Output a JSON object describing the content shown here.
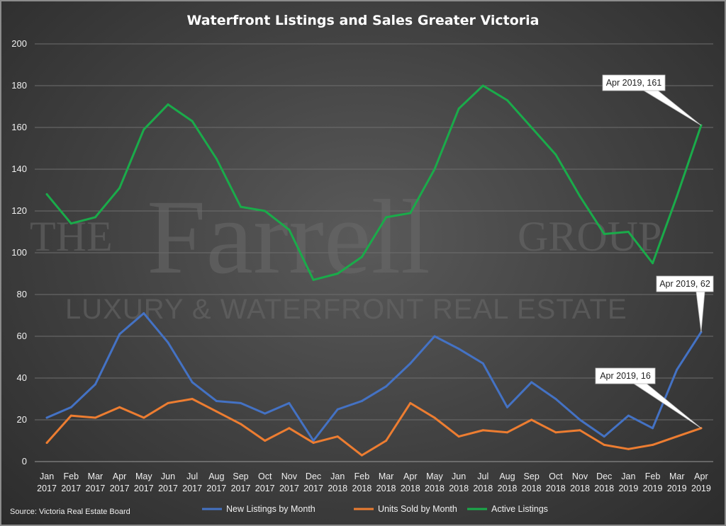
{
  "chart_data": {
    "type": "line",
    "title": "Waterfront Listings and Sales Greater Victoria",
    "categories": [
      [
        "Jan",
        "2017"
      ],
      [
        "Feb",
        "2017"
      ],
      [
        "Mar",
        "2017"
      ],
      [
        "Apr",
        "2017"
      ],
      [
        "May",
        "2017"
      ],
      [
        "Jun",
        "2017"
      ],
      [
        "Jul",
        "2017"
      ],
      [
        "Aug",
        "2017"
      ],
      [
        "Sep",
        "2017"
      ],
      [
        "Oct",
        "2017"
      ],
      [
        "Nov",
        "2017"
      ],
      [
        "Dec",
        "2017"
      ],
      [
        "Jan",
        "2018"
      ],
      [
        "Feb",
        "2018"
      ],
      [
        "Mar",
        "2018"
      ],
      [
        "Apr",
        "2018"
      ],
      [
        "May",
        "2018"
      ],
      [
        "Jun",
        "2018"
      ],
      [
        "Jul",
        "2018"
      ],
      [
        "Aug",
        "2018"
      ],
      [
        "Sep",
        "2018"
      ],
      [
        "Oct",
        "2018"
      ],
      [
        "Nov",
        "2018"
      ],
      [
        "Dec",
        "2018"
      ],
      [
        "Jan",
        "2019"
      ],
      [
        "Feb",
        "2019"
      ],
      [
        "Mar",
        "2019"
      ],
      [
        "Apr",
        "2019"
      ]
    ],
    "ylim": [
      0,
      200
    ],
    "yticks": [
      0,
      20,
      40,
      60,
      80,
      100,
      120,
      140,
      160,
      180,
      200
    ],
    "grid": true,
    "legend_position": "bottom",
    "series": [
      {
        "name": "New Listings by Month",
        "color": "#4472c4",
        "values": [
          21,
          26,
          37,
          61,
          71,
          57,
          38,
          29,
          28,
          23,
          28,
          10,
          25,
          29,
          36,
          47,
          60,
          54,
          47,
          26,
          38,
          30,
          20,
          12,
          22,
          16,
          44,
          62
        ]
      },
      {
        "name": "Units Sold by Month",
        "color": "#ed7d31",
        "values": [
          9,
          22,
          21,
          26,
          21,
          28,
          30,
          24,
          18,
          10,
          16,
          9,
          12,
          3,
          10,
          28,
          21,
          12,
          15,
          14,
          20,
          14,
          15,
          8,
          6,
          8,
          12,
          16
        ]
      },
      {
        "name": "Active Listings",
        "color": "#1aab4a",
        "values": [
          128,
          114,
          117,
          131,
          159,
          171,
          163,
          145,
          122,
          120,
          111,
          87,
          90,
          98,
          117,
          119,
          140,
          169,
          180,
          173,
          160,
          147,
          127,
          109,
          110,
          95,
          127,
          161
        ]
      }
    ],
    "annotations": [
      {
        "text": "Apr 2019, 161",
        "series": 2,
        "index": 27
      },
      {
        "text": "Apr 2019, 62",
        "series": 0,
        "index": 27
      },
      {
        "text": "Apr 2019, 16",
        "series": 1,
        "index": 27
      }
    ]
  },
  "watermark": {
    "brand_the": "THE",
    "brand_name": "Farrell",
    "brand_group": "GROUP",
    "tagline": "LUXURY & WATERFRONT REAL ESTATE"
  },
  "source_note": "Source:  Victoria Real Estate Board"
}
